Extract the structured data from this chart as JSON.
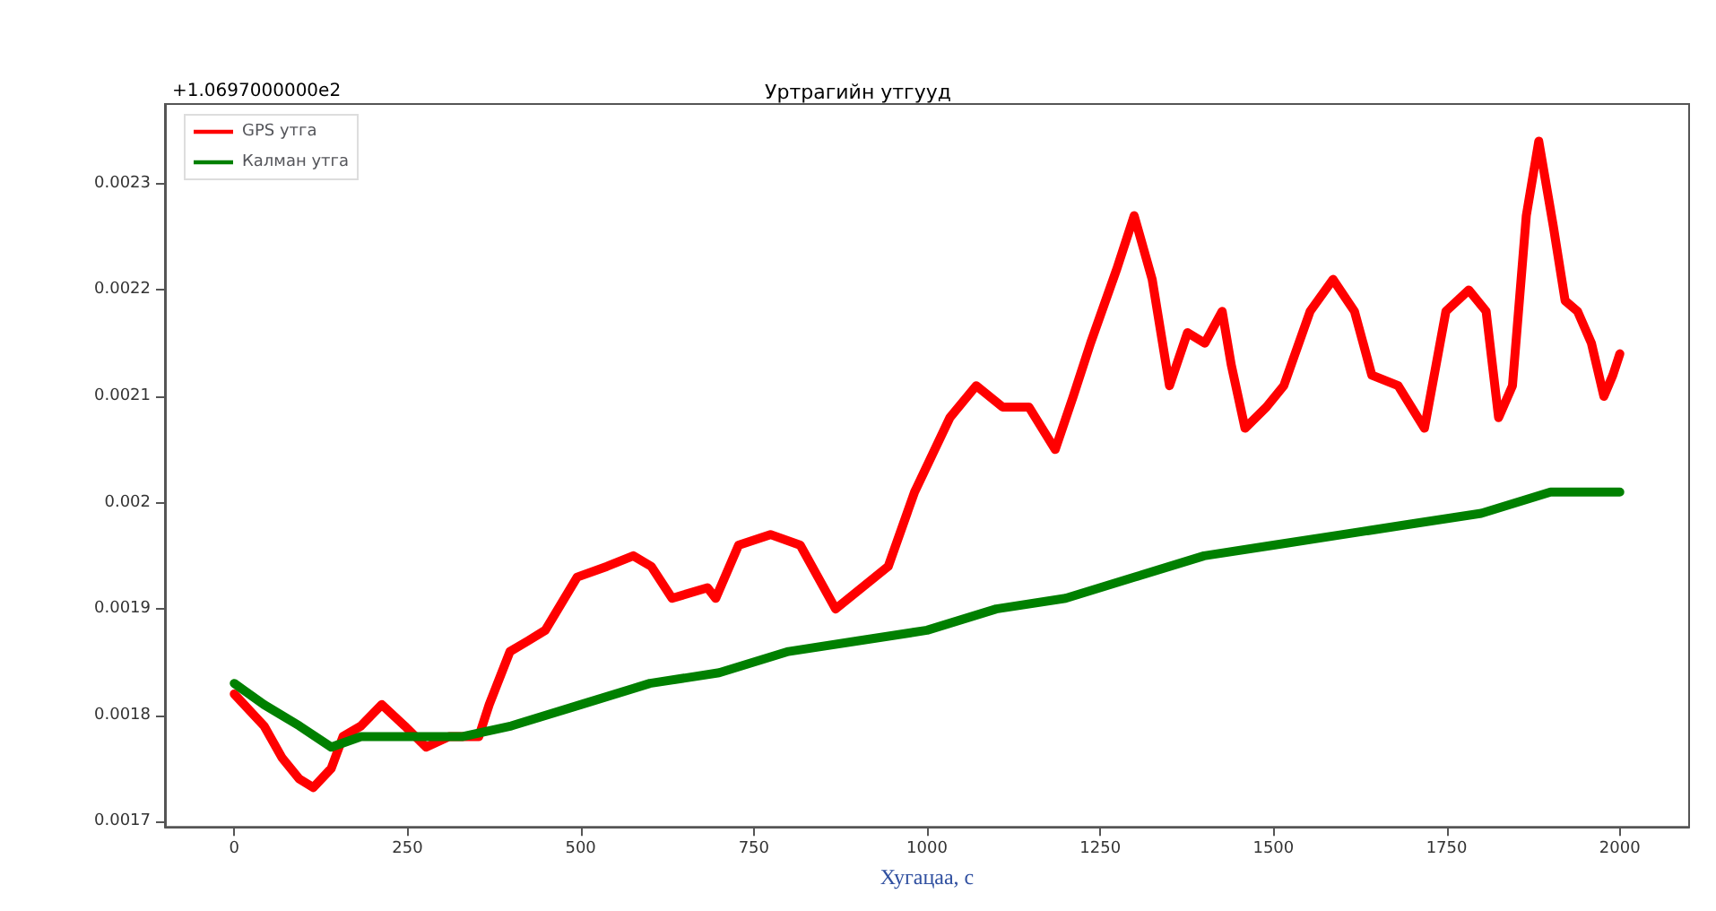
{
  "chart_data": {
    "type": "line",
    "title": "Уртрагийн утгууд",
    "xlabel": "Хугацаа, с",
    "annotations": [
      "+1.0697000000e2"
    ],
    "xlim": [
      -100,
      2100
    ],
    "xticks": [
      0,
      250,
      500,
      750,
      1000,
      1250,
      1500,
      1750,
      2000
    ],
    "ylim": [
      0.001695,
      0.002375
    ],
    "yticks": [
      0.0017,
      0.0018,
      0.0019,
      0.002,
      0.0021,
      0.0022,
      0.0023
    ],
    "grid": false,
    "legend": "top left",
    "marker": "none",
    "line_style": "solid",
    "series": [
      {
        "name": "GPS утга",
        "color": "#ff0000",
        "x": [
          0,
          43,
          69,
          94,
          114,
          140,
          157,
          183,
          213,
          246,
          277,
          310,
          353,
          368,
          398,
          424,
          449,
          495,
          538,
          576,
          602,
          632,
          683,
          695,
          728,
          774,
          817,
          868,
          906,
          944,
          982,
          1033,
          1071,
          1109,
          1147,
          1185,
          1211,
          1236,
          1274,
          1299,
          1325,
          1350,
          1376,
          1401,
          1426,
          1439,
          1459,
          1490,
          1515,
          1553,
          1586,
          1617,
          1642,
          1680,
          1718,
          1749,
          1782,
          1807,
          1825,
          1845,
          1865,
          1883,
          1904,
          1921,
          1939,
          1959,
          1977,
          1990,
          2000
        ],
        "values": [
          0.00182,
          0.00179,
          0.00176,
          0.00174,
          0.001732,
          0.00175,
          0.00178,
          0.00179,
          0.00181,
          0.00179,
          0.00177,
          0.00178,
          0.00178,
          0.00181,
          0.00186,
          0.00187,
          0.00188,
          0.00193,
          0.00194,
          0.00195,
          0.00194,
          0.00191,
          0.00192,
          0.00191,
          0.00196,
          0.00197,
          0.00196,
          0.0019,
          0.00192,
          0.00194,
          0.00201,
          0.00208,
          0.00211,
          0.00209,
          0.00209,
          0.00205,
          0.0021,
          0.00215,
          0.00222,
          0.00227,
          0.00221,
          0.00211,
          0.00216,
          0.00215,
          0.00218,
          0.00213,
          0.00207,
          0.00209,
          0.00211,
          0.00218,
          0.00221,
          0.00218,
          0.00212,
          0.00211,
          0.00207,
          0.00218,
          0.0022,
          0.00218,
          0.00208,
          0.00211,
          0.00227,
          0.00234,
          0.00226,
          0.00219,
          0.00218,
          0.00215,
          0.0021,
          0.00212,
          0.00214
        ]
      },
      {
        "name": "Калман утга",
        "color": "#008000",
        "x": [
          0,
          43,
          94,
          140,
          183,
          250,
          330,
          400,
          500,
          600,
          700,
          800,
          900,
          1000,
          1100,
          1200,
          1300,
          1400,
          1500,
          1600,
          1700,
          1800,
          1900,
          2000
        ],
        "values": [
          0.00183,
          0.00181,
          0.00179,
          0.00177,
          0.00178,
          0.00178,
          0.00178,
          0.00179,
          0.00181,
          0.00183,
          0.00184,
          0.00186,
          0.00187,
          0.00188,
          0.0019,
          0.00191,
          0.00193,
          0.00195,
          0.00196,
          0.00197,
          0.00198,
          0.00199,
          0.00201,
          0.00201
        ]
      }
    ]
  }
}
